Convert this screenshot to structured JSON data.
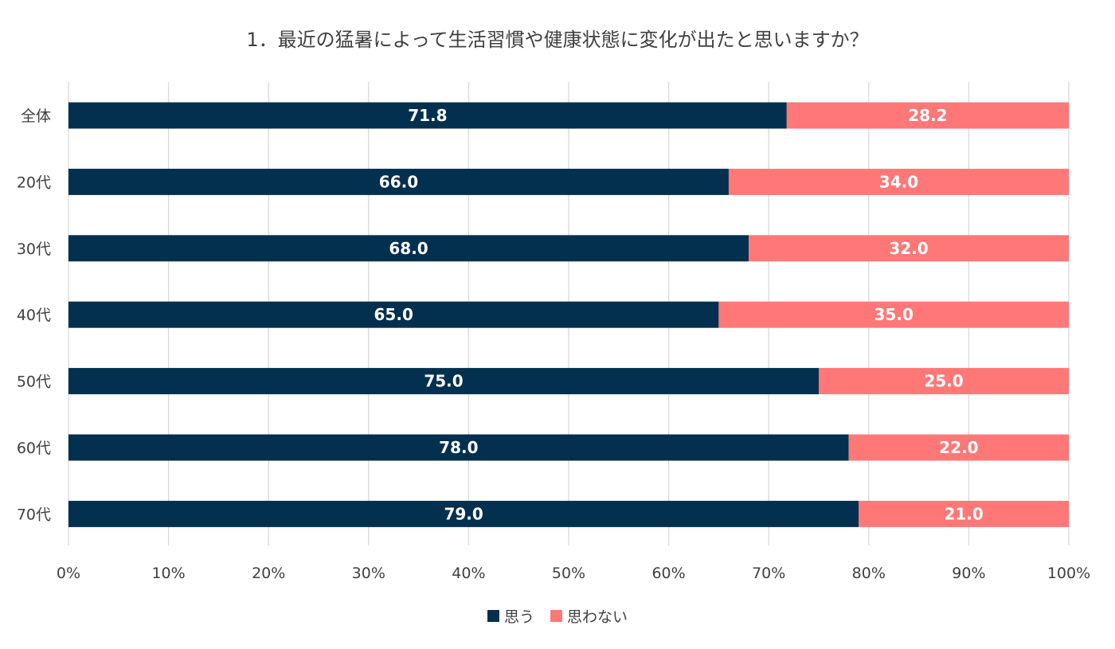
{
  "chart_data": {
    "type": "bar",
    "orientation": "horizontal",
    "stacked": true,
    "title": "1．最近の猛暑によって生活習慣や健康状態に変化が出たと思いますか？",
    "categories": [
      "全体",
      "20代",
      "30代",
      "40代",
      "50代",
      "60代",
      "70代"
    ],
    "series": [
      {
        "name": "思う",
        "color": "#04304f",
        "values": [
          71.8,
          66.0,
          68.0,
          65.0,
          75.0,
          78.0,
          79.0
        ]
      },
      {
        "name": "思わない",
        "color": "#ff7777",
        "values": [
          28.2,
          34.0,
          32.0,
          35.0,
          25.0,
          22.0,
          21.0
        ]
      }
    ],
    "x_ticks": [
      "0%",
      "10%",
      "20%",
      "30%",
      "40%",
      "50%",
      "60%",
      "70%",
      "80%",
      "90%",
      "100%"
    ],
    "xlim": [
      0,
      100
    ],
    "grid": "vertical",
    "legend_position": "bottom",
    "data_labels": true
  }
}
